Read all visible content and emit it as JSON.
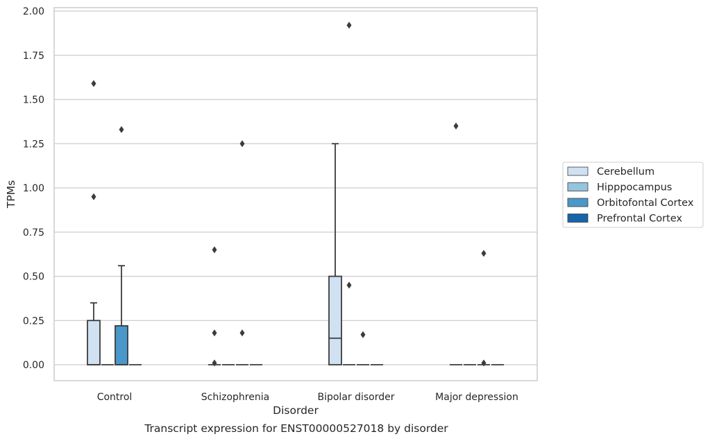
{
  "chart_data": {
    "type": "box",
    "title": "",
    "caption": "Transcript expression for ENST00000527018 by disorder",
    "xlabel": "Disorder",
    "ylabel": "TPMs",
    "ylim": [
      -0.09,
      2.02
    ],
    "yticks": [
      "0.00",
      "0.25",
      "0.50",
      "0.75",
      "1.00",
      "1.25",
      "1.50",
      "1.75",
      "2.00"
    ],
    "grid": "horizontal",
    "legend_position": "right",
    "categories": [
      "Control",
      "Schizophrenia",
      "Bipolar disorder",
      "Major depression"
    ],
    "series": [
      {
        "name": "Cerebellum",
        "color": "#d0e1f2",
        "boxes": [
          {
            "q1": 0.0,
            "median": 0.0,
            "q3": 0.25,
            "whisker_low": 0.0,
            "whisker_high": 0.35,
            "outliers": [
              0.95,
              1.59
            ]
          },
          {
            "q1": 0.0,
            "median": 0.0,
            "q3": 0.0,
            "whisker_low": 0.0,
            "whisker_high": 0.0,
            "outliers": [
              0.01,
              0.18,
              0.65
            ]
          },
          {
            "q1": 0.0,
            "median": 0.15,
            "q3": 0.5,
            "whisker_low": 0.0,
            "whisker_high": 1.25,
            "outliers": []
          },
          {
            "q1": 0.0,
            "median": 0.0,
            "q3": 0.0,
            "whisker_low": 0.0,
            "whisker_high": 0.0,
            "outliers": [
              1.35
            ]
          }
        ]
      },
      {
        "name": "Hipppocampus",
        "color": "#94c4df",
        "boxes": [
          {
            "q1": 0.0,
            "median": 0.0,
            "q3": 0.0,
            "whisker_low": 0.0,
            "whisker_high": 0.0,
            "outliers": []
          },
          {
            "q1": 0.0,
            "median": 0.0,
            "q3": 0.0,
            "whisker_low": 0.0,
            "whisker_high": 0.0,
            "outliers": []
          },
          {
            "q1": 0.0,
            "median": 0.0,
            "q3": 0.0,
            "whisker_low": 0.0,
            "whisker_high": 0.0,
            "outliers": [
              0.45,
              1.92
            ]
          },
          {
            "q1": 0.0,
            "median": 0.0,
            "q3": 0.0,
            "whisker_low": 0.0,
            "whisker_high": 0.0,
            "outliers": []
          }
        ]
      },
      {
        "name": "Orbitofontal Cortex",
        "color": "#4a98c9",
        "boxes": [
          {
            "q1": 0.0,
            "median": 0.0,
            "q3": 0.22,
            "whisker_low": 0.0,
            "whisker_high": 0.56,
            "outliers": [
              1.33
            ]
          },
          {
            "q1": 0.0,
            "median": 0.0,
            "q3": 0.0,
            "whisker_low": 0.0,
            "whisker_high": 0.0,
            "outliers": [
              0.18,
              1.25
            ]
          },
          {
            "q1": 0.0,
            "median": 0.0,
            "q3": 0.0,
            "whisker_low": 0.0,
            "whisker_high": 0.0,
            "outliers": [
              0.17
            ]
          },
          {
            "q1": 0.0,
            "median": 0.0,
            "q3": 0.0,
            "whisker_low": 0.0,
            "whisker_high": 0.0,
            "outliers": [
              0.01,
              0.63
            ]
          }
        ]
      },
      {
        "name": "Prefrontal Cortex",
        "color": "#1764ab",
        "boxes": [
          {
            "q1": 0.0,
            "median": 0.0,
            "q3": 0.0,
            "whisker_low": 0.0,
            "whisker_high": 0.0,
            "outliers": []
          },
          {
            "q1": 0.0,
            "median": 0.0,
            "q3": 0.0,
            "whisker_low": 0.0,
            "whisker_high": 0.0,
            "outliers": []
          },
          {
            "q1": 0.0,
            "median": 0.0,
            "q3": 0.0,
            "whisker_low": 0.0,
            "whisker_high": 0.0,
            "outliers": []
          },
          {
            "q1": 0.0,
            "median": 0.0,
            "q3": 0.0,
            "whisker_low": 0.0,
            "whisker_high": 0.0,
            "outliers": []
          }
        ]
      }
    ]
  }
}
